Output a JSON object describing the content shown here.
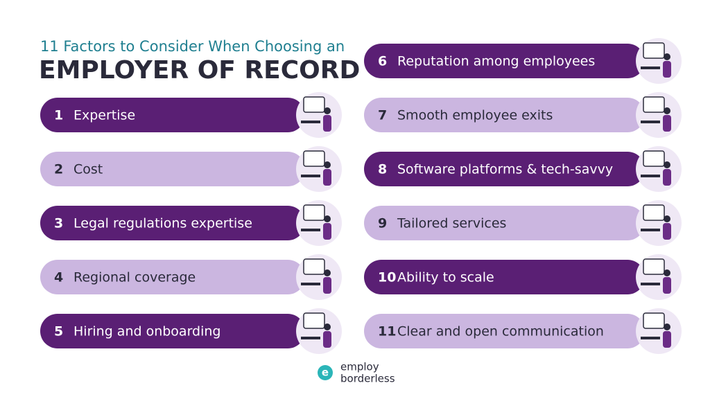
{
  "header": {
    "subtitle": "11 Factors to Consider When Choosing an",
    "title": "EMPLOYER OF RECORD"
  },
  "items": [
    {
      "number": 1,
      "label": "Expertise",
      "tone": "dark"
    },
    {
      "number": 2,
      "label": "Cost",
      "tone": "light"
    },
    {
      "number": 3,
      "label": "Legal regulations expertise",
      "tone": "dark"
    },
    {
      "number": 4,
      "label": "Regional coverage",
      "tone": "light"
    },
    {
      "number": 5,
      "label": "Hiring and onboarding",
      "tone": "dark"
    },
    {
      "number": 6,
      "label": "Reputation among employees",
      "tone": "dark"
    },
    {
      "number": 7,
      "label": "Smooth employee exits",
      "tone": "light"
    },
    {
      "number": 8,
      "label": "Software platforms & tech-savvy",
      "tone": "dark"
    },
    {
      "number": 9,
      "label": "Tailored services",
      "tone": "light"
    },
    {
      "number": 10,
      "label": "Ability to scale",
      "tone": "dark"
    },
    {
      "number": 11,
      "label": "Clear and open communication",
      "tone": "light"
    }
  ],
  "logo": {
    "line1": "employ",
    "line2": "borderless"
  }
}
